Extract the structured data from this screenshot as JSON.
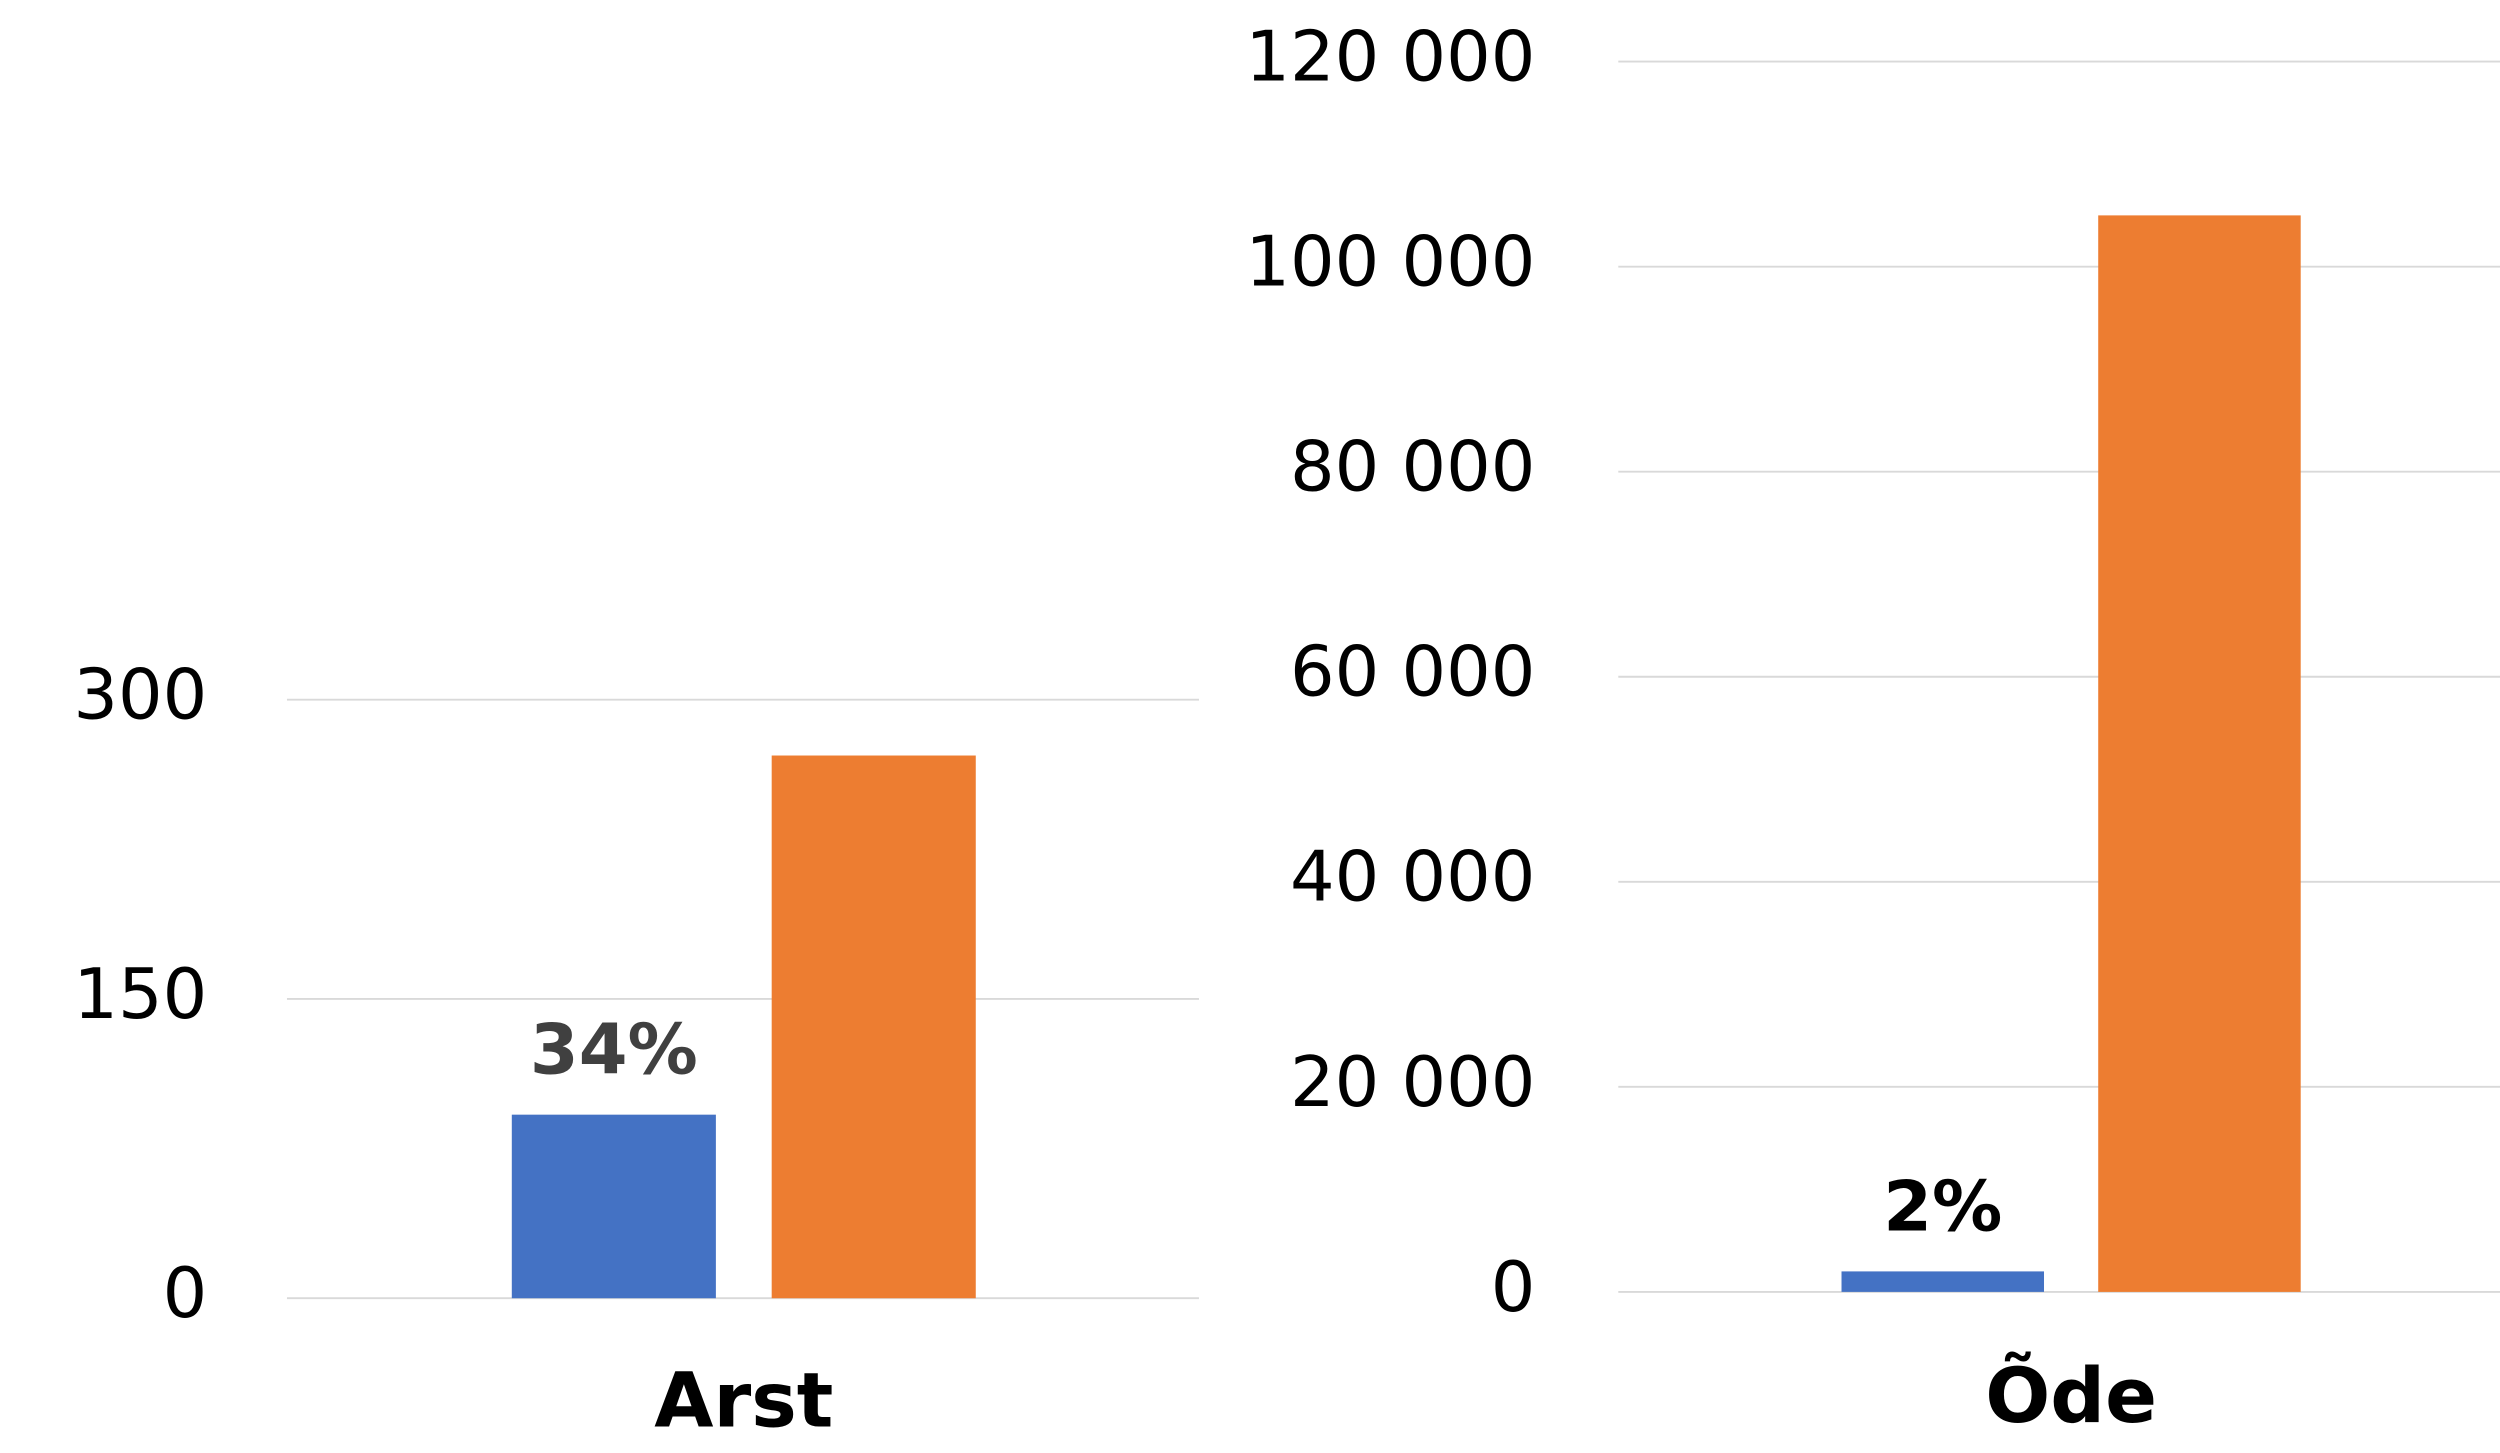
{
  "chart_data": [
    {
      "type": "bar",
      "categories": [
        "Arst"
      ],
      "series": [
        {
          "color": "#4472c4",
          "values": [
            92
          ]
        },
        {
          "color": "#ed7d31",
          "values": [
            272
          ]
        }
      ],
      "bar_annotations": [
        "34%"
      ],
      "annotation_color": "#404040",
      "ylim": [
        0,
        300
      ],
      "yticks": [
        0,
        150,
        300
      ],
      "grid": true
    },
    {
      "type": "bar",
      "categories": [
        "Õde"
      ],
      "series": [
        {
          "color": "#4472c4",
          "values": [
            2000
          ]
        },
        {
          "color": "#ed7d31",
          "values": [
            105000
          ]
        }
      ],
      "bar_annotations": [
        "2%"
      ],
      "annotation_color": "#000000",
      "ylim": [
        0,
        120000
      ],
      "yticks": [
        0,
        {
          "value": 20000,
          "label": "20 000"
        },
        {
          "value": 40000,
          "label": "40 000"
        },
        {
          "value": 60000,
          "label": "60 000"
        },
        {
          "value": 80000,
          "label": "80 000"
        },
        {
          "value": 100000,
          "label": "100 000"
        },
        {
          "value": 120000,
          "label": "120 000"
        }
      ],
      "grid": true
    }
  ]
}
